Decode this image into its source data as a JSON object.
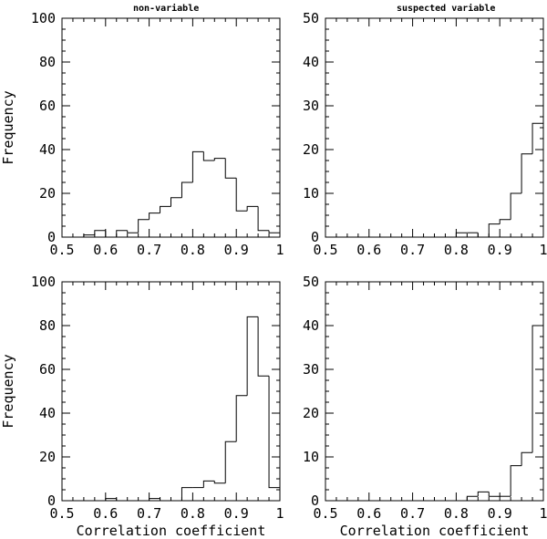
{
  "chart_data": [
    {
      "type": "bar",
      "title": "non-variable",
      "xlabel": "",
      "ylabel": "Frequency",
      "xlim": [
        0.5,
        1.0
      ],
      "ylim": [
        0,
        100
      ],
      "xticks": [
        "0.5",
        "0.6",
        "0.7",
        "0.8",
        "0.9",
        "1"
      ],
      "yticks": [
        "0",
        "20",
        "40",
        "60",
        "80",
        "100"
      ],
      "bin_width": 0.025,
      "bins": [
        {
          "x0": 0.525,
          "value": 0
        },
        {
          "x0": 0.55,
          "value": 1
        },
        {
          "x0": 0.575,
          "value": 3
        },
        {
          "x0": 0.6,
          "value": 0
        },
        {
          "x0": 0.625,
          "value": 3
        },
        {
          "x0": 0.65,
          "value": 2
        },
        {
          "x0": 0.675,
          "value": 8
        },
        {
          "x0": 0.7,
          "value": 11
        },
        {
          "x0": 0.725,
          "value": 14
        },
        {
          "x0": 0.75,
          "value": 18
        },
        {
          "x0": 0.775,
          "value": 25
        },
        {
          "x0": 0.8,
          "value": 39
        },
        {
          "x0": 0.825,
          "value": 35
        },
        {
          "x0": 0.85,
          "value": 36
        },
        {
          "x0": 0.875,
          "value": 27
        },
        {
          "x0": 0.9,
          "value": 12
        },
        {
          "x0": 0.925,
          "value": 14
        },
        {
          "x0": 0.95,
          "value": 3
        },
        {
          "x0": 0.975,
          "value": 2
        }
      ]
    },
    {
      "type": "bar",
      "title": "suspected variable",
      "xlabel": "",
      "ylabel": "",
      "xlim": [
        0.5,
        1.0
      ],
      "ylim": [
        0,
        50
      ],
      "xticks": [
        "0.5",
        "0.6",
        "0.7",
        "0.8",
        "0.9",
        "1"
      ],
      "yticks": [
        "0",
        "10",
        "20",
        "30",
        "40",
        "50"
      ],
      "bin_width": 0.025,
      "bins": [
        {
          "x0": 0.8,
          "value": 1
        },
        {
          "x0": 0.825,
          "value": 1
        },
        {
          "x0": 0.85,
          "value": 0
        },
        {
          "x0": 0.875,
          "value": 3
        },
        {
          "x0": 0.9,
          "value": 4
        },
        {
          "x0": 0.925,
          "value": 10
        },
        {
          "x0": 0.95,
          "value": 19
        },
        {
          "x0": 0.975,
          "value": 26
        }
      ]
    },
    {
      "type": "bar",
      "title": "",
      "xlabel": "Correlation coefficient",
      "ylabel": "Frequency",
      "xlim": [
        0.5,
        1.0
      ],
      "ylim": [
        0,
        100
      ],
      "xticks": [
        "0.5",
        "0.6",
        "0.7",
        "0.8",
        "0.9",
        "1"
      ],
      "yticks": [
        "0",
        "20",
        "40",
        "60",
        "80",
        "100"
      ],
      "bin_width": 0.025,
      "bins": [
        {
          "x0": 0.6,
          "value": 1
        },
        {
          "x0": 0.625,
          "value": 0
        },
        {
          "x0": 0.65,
          "value": 0
        },
        {
          "x0": 0.675,
          "value": 0
        },
        {
          "x0": 0.7,
          "value": 1
        },
        {
          "x0": 0.725,
          "value": 0
        },
        {
          "x0": 0.75,
          "value": 0
        },
        {
          "x0": 0.775,
          "value": 6
        },
        {
          "x0": 0.8,
          "value": 6
        },
        {
          "x0": 0.825,
          "value": 9
        },
        {
          "x0": 0.85,
          "value": 8
        },
        {
          "x0": 0.875,
          "value": 27
        },
        {
          "x0": 0.9,
          "value": 48
        },
        {
          "x0": 0.925,
          "value": 84
        },
        {
          "x0": 0.95,
          "value": 57
        },
        {
          "x0": 0.975,
          "value": 6
        }
      ]
    },
    {
      "type": "bar",
      "title": "",
      "xlabel": "Correlation coefficient",
      "ylabel": "",
      "xlim": [
        0.5,
        1.0
      ],
      "ylim": [
        0,
        50
      ],
      "xticks": [
        "0.5",
        "0.6",
        "0.7",
        "0.8",
        "0.9",
        "1"
      ],
      "yticks": [
        "0",
        "10",
        "20",
        "30",
        "40",
        "50"
      ],
      "bin_width": 0.025,
      "bins": [
        {
          "x0": 0.825,
          "value": 1
        },
        {
          "x0": 0.85,
          "value": 2
        },
        {
          "x0": 0.875,
          "value": 1
        },
        {
          "x0": 0.9,
          "value": 1
        },
        {
          "x0": 0.925,
          "value": 8
        },
        {
          "x0": 0.95,
          "value": 11
        },
        {
          "x0": 0.975,
          "value": 40
        }
      ]
    }
  ]
}
